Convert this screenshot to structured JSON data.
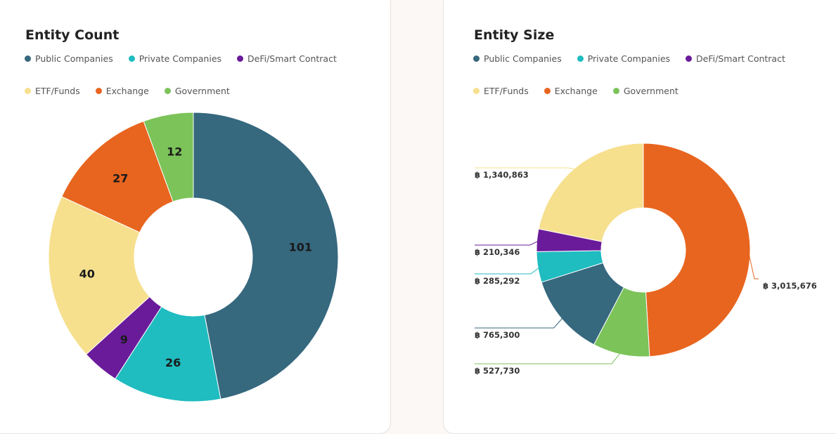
{
  "colors": {
    "public": "#36687e",
    "private": "#1fbcc0",
    "defi": "#6a1b9a",
    "etf": "#f6e08e",
    "exchange": "#e8651f",
    "government": "#7cc35a"
  },
  "chart_data": [
    {
      "type": "pie",
      "title": "Entity Count",
      "legend_position": "top-left",
      "categories": [
        "Public Companies",
        "Private Companies",
        "DeFi/Smart Contract",
        "ETF/Funds",
        "Exchange",
        "Government"
      ],
      "values": [
        101,
        26,
        9,
        40,
        27,
        12
      ],
      "value_labels": [
        "101",
        "26",
        "9",
        "40",
        "27",
        "12"
      ],
      "donut": true
    },
    {
      "type": "pie",
      "title": "Entity Size",
      "legend_position": "top-left",
      "categories": [
        "Public Companies",
        "Private Companies",
        "DeFi/Smart Contract",
        "ETF/Funds",
        "Exchange",
        "Government"
      ],
      "values": [
        765300,
        285292,
        210346,
        1340863,
        3015676,
        527730
      ],
      "value_labels": [
        "฿ 765,300",
        "฿ 285,292",
        "฿ 210,346",
        "฿ 1,340,863",
        "฿ 3,015,676",
        "฿ 527,730"
      ],
      "donut": true
    }
  ]
}
